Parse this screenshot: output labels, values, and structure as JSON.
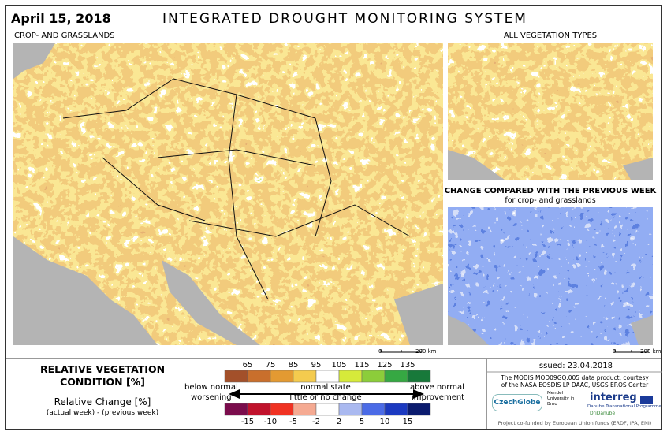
{
  "header": {
    "date": "April 15, 2018",
    "title": "INTEGRATED DROUGHT MONITORING SYSTEM"
  },
  "main_map": {
    "label": "CROP- AND GRASSLANDS",
    "scale": [
      "0",
      "200 km"
    ]
  },
  "side_maps": [
    {
      "label": "ALL VEGETATION TYPES"
    },
    {
      "label": "CHANGE COMPARED WITH THE PREVIOUS WEEK",
      "sublabel": "for crop- and grasslands",
      "scale": [
        "0",
        "200 km"
      ]
    }
  ],
  "legend": {
    "title": "RELATIVE VEGETATION CONDITION [%]",
    "change_title": "Relative Change [%]",
    "change_note": "(actual week) - (previous week)",
    "condition_breaks": [
      65,
      75,
      85,
      95,
      105,
      115,
      125,
      135
    ],
    "condition_colors": [
      "#a3502a",
      "#c96f2c",
      "#e39a32",
      "#f4cb4e",
      "#ffffff",
      "#d6ea3a",
      "#8ccd3a",
      "#36a843",
      "#18793a"
    ],
    "change_breaks": [
      -15,
      -10,
      -5,
      -2,
      2,
      5,
      10,
      15
    ],
    "change_colors": [
      "#7a0c4c",
      "#c0122c",
      "#f03222",
      "#f5aa92",
      "#ffffff",
      "#aab9f0",
      "#4b6be6",
      "#1b39c0",
      "#0b1b6e"
    ],
    "left": [
      "below normal",
      "worsening"
    ],
    "center": [
      "normal state",
      "little or no change"
    ],
    "right": [
      "above normal",
      "improvement"
    ]
  },
  "info": {
    "issued": "Issued: 23.04.2018",
    "credit": [
      "The MODIS MOD09GQ.005 data product, courtesy",
      "of the NASA EOSDIS LP DAAC, USGS EROS Center"
    ],
    "logos": [
      "CzechGlobe",
      "Mendel University in Brno",
      "interreg",
      "Danube Transnational Programme",
      "DriDanube"
    ],
    "footer": "Project co-funded by European Union funds (ERDF, IPA, ENI)"
  }
}
